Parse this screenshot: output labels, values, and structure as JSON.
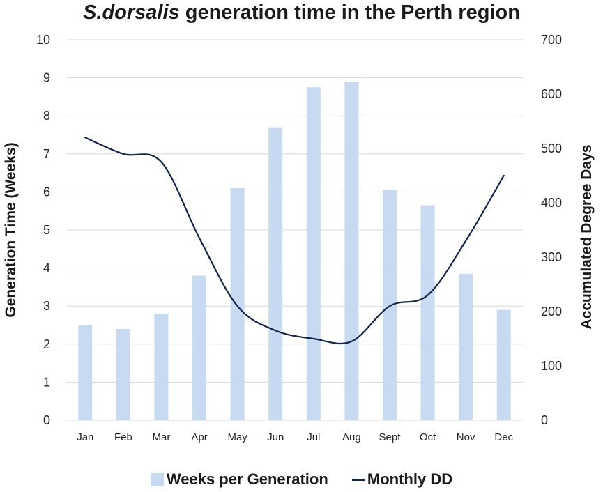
{
  "chart_data": {
    "type": "bar+line",
    "title_italic": "S.dorsalis",
    "title_rest": " generation time in the Perth region",
    "categories": [
      "Jan",
      "Feb",
      "Mar",
      "Apr",
      "May",
      "Jun",
      "Jul",
      "Aug",
      "Sept",
      "Oct",
      "Nov",
      "Dec"
    ],
    "series": [
      {
        "name": "Weeks per Generation",
        "type": "bar",
        "axis": "left",
        "color": "#c8daf2",
        "values": [
          2.5,
          2.4,
          2.8,
          3.8,
          6.1,
          7.7,
          8.75,
          8.9,
          6.05,
          5.65,
          3.85,
          2.9
        ]
      },
      {
        "name": "Monthly DD",
        "type": "line",
        "axis": "right",
        "color": "#13254d",
        "values": [
          520,
          490,
          475,
          335,
          210,
          165,
          150,
          145,
          210,
          230,
          330,
          450
        ]
      }
    ],
    "ylabel_left": "Generation Time (Weeks)",
    "ylabel_right": "Accumulated Degree Days",
    "ylim_left": [
      0,
      10
    ],
    "ylim_right": [
      0,
      700
    ],
    "yticks_left": [
      "0",
      "1",
      "2",
      "3",
      "4",
      "5",
      "6",
      "7",
      "8",
      "9",
      "10"
    ],
    "yticks_right": [
      "0",
      "100",
      "200",
      "300",
      "400",
      "500",
      "600",
      "700"
    ],
    "grid": true,
    "legend_position": "bottom"
  }
}
